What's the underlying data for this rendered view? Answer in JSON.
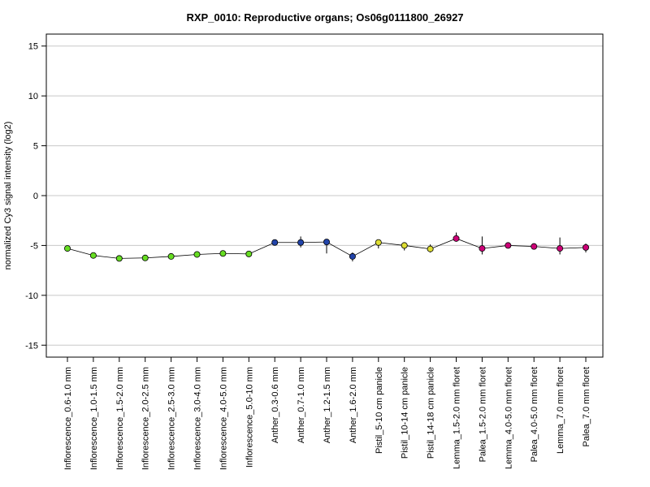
{
  "chart_data": {
    "type": "line",
    "title": "RXP_0010: Reproductive organs; Os06g0111800_26927",
    "ylabel": "normalized Cy3 signal intensity (log2)",
    "xlabel": "",
    "ylim": [
      -16.2,
      16.2
    ],
    "yticks": [
      15,
      10,
      5,
      0,
      -5,
      -10,
      -15
    ],
    "grid": true,
    "categories": [
      "Inflorescence_0.6-1.0 mm",
      "Inflorescence_1.0-1.5 mm",
      "Inflorescence_1.5-2.0 mm",
      "Inflorescence_2.0-2.5 mm",
      "Inflorescence_2.5-3.0 mm",
      "Inflorescence_3.0-4.0 mm",
      "Inflorescence_4.0-5.0 mm",
      "Inflorescence_5.0-10 mm",
      "Anther_0.3-0.6 mm",
      "Anther_0.7-1.0 mm",
      "Anther_1.2-1.5 mm",
      "Anther_1.6-2.0 mm",
      "Pistil_5-10 cm panicle",
      "Pistil_10-14 cm panicle",
      "Pistil_14-18 cm panicle",
      "Lemma_1.5-2.0 mm floret",
      "Palea_1.5-2.0 mm floret",
      "Lemma_4.0-5.0 mm floret",
      "Palea_4.0-5.0 mm floret",
      "Lemma_7.0 mm floret",
      "Palea_7.0 mm floret"
    ],
    "series": [
      {
        "values": [
          -5.3,
          -6.0,
          -6.3,
          -6.25,
          -6.1,
          -5.9,
          -5.8,
          -5.85,
          -4.7,
          -4.7,
          -4.65,
          -6.1,
          -4.7,
          -5.0,
          -5.35,
          -4.3,
          -5.3,
          -5.0,
          -5.1,
          -5.3,
          -5.2
        ],
        "err_low": [
          -5.5,
          -6.1,
          -6.4,
          -6.4,
          -6.2,
          -6.0,
          -5.9,
          -5.95,
          -4.75,
          -5.2,
          -5.8,
          -6.6,
          -5.3,
          -5.5,
          -5.7,
          -4.5,
          -5.9,
          -5.1,
          -5.4,
          -5.9,
          -5.7
        ],
        "err_high": [
          -5.1,
          -5.9,
          -6.2,
          -6.1,
          -6.0,
          -5.8,
          -5.7,
          -5.75,
          -4.65,
          -4.1,
          -4.5,
          -5.7,
          -4.4,
          -4.7,
          -4.9,
          -3.7,
          -4.1,
          -4.8,
          -4.8,
          -4.2,
          -4.8
        ],
        "colors": [
          "#66dd22",
          "#66dd22",
          "#66dd22",
          "#66dd22",
          "#66dd22",
          "#66dd22",
          "#66dd22",
          "#66dd22",
          "#2244aa",
          "#2244aa",
          "#2244aa",
          "#2244aa",
          "#dddd33",
          "#dddd33",
          "#dddd33",
          "#cc0077",
          "#cc0077",
          "#cc0077",
          "#cc0077",
          "#cc0077",
          "#cc0077"
        ]
      }
    ]
  }
}
